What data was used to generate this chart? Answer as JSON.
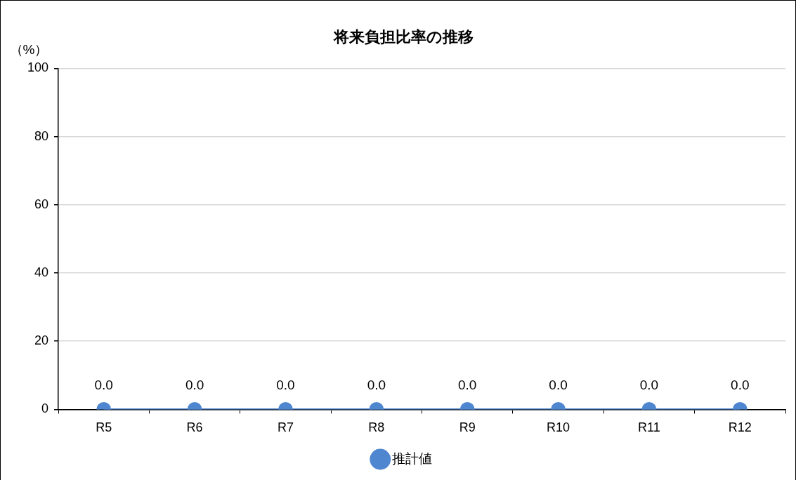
{
  "chart_data": {
    "type": "line",
    "title": "将来負担比率の推移",
    "ylabel": "（%）",
    "categories": [
      "R5",
      "R6",
      "R7",
      "R8",
      "R9",
      "R10",
      "R11",
      "R12"
    ],
    "series": [
      {
        "name": "推計値",
        "color": "#4f86d0",
        "values": [
          0,
          0,
          0,
          0,
          0,
          0,
          0,
          0
        ],
        "value_labels": [
          "0.0",
          "0.0",
          "0.0",
          "0.0",
          "0.0",
          "0.0",
          "0.0",
          "0.0"
        ]
      }
    ],
    "ylim": [
      0,
      100
    ],
    "yticks": [
      0,
      20,
      40,
      60,
      80,
      100
    ],
    "grid": "y",
    "legend": "bottom",
    "marker": "circle",
    "line_style": "solid"
  }
}
